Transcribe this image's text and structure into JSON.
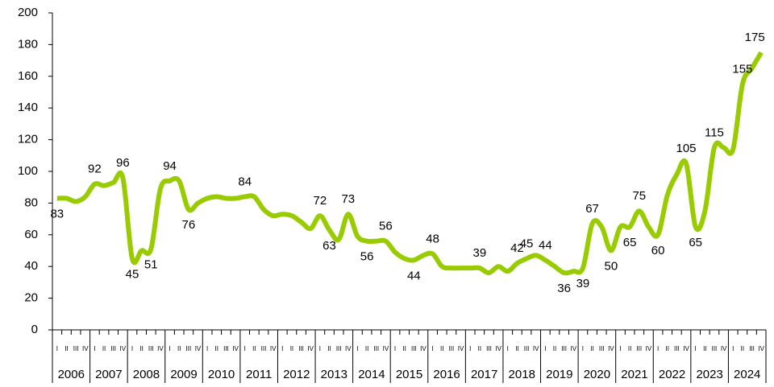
{
  "chart_data": {
    "type": "line",
    "years": [
      "2006",
      "2007",
      "2008",
      "2009",
      "2010",
      "2011",
      "2012",
      "2013",
      "2014",
      "2015",
      "2016",
      "2017",
      "2018",
      "2019",
      "2020",
      "2021",
      "2022",
      "2023",
      "2024"
    ],
    "categories": [
      "I",
      "II",
      "III",
      "IV",
      "I",
      "II",
      "III",
      "IV",
      "I",
      "II",
      "III",
      "IV",
      "I",
      "II",
      "III",
      "IV",
      "I",
      "II",
      "III",
      "IV",
      "I",
      "II",
      "III",
      "IV",
      "I",
      "II",
      "III",
      "IV",
      "I",
      "II",
      "III",
      "IV",
      "I",
      "II",
      "III",
      "IV",
      "I",
      "II",
      "III",
      "IV",
      "I",
      "II",
      "III",
      "IV",
      "I",
      "II",
      "III",
      "IV",
      "I",
      "II",
      "III",
      "IV",
      "I",
      "II",
      "III",
      "IV",
      "I",
      "II",
      "III",
      "IV",
      "I",
      "II",
      "III",
      "IV",
      "I",
      "II",
      "III",
      "IV",
      "I",
      "II",
      "III",
      "IV",
      "I",
      "II",
      "III",
      "IV"
    ],
    "series": [
      {
        "color": "#99cc00",
        "values": [
          83,
          83,
          81,
          84,
          92,
          91,
          93,
          96,
          45,
          50,
          51,
          89,
          94,
          94,
          76,
          80,
          83,
          84,
          83,
          83,
          84,
          84,
          76,
          72,
          73,
          72,
          68,
          64,
          72,
          63,
          57,
          73,
          59,
          56,
          56,
          56,
          49,
          45,
          44,
          47,
          48,
          40,
          39,
          39,
          39,
          39,
          36,
          40,
          37,
          42,
          45,
          47,
          44,
          40,
          36,
          37,
          39,
          67,
          65,
          50,
          65,
          65,
          75,
          65,
          60,
          85,
          98,
          105,
          65,
          75,
          115,
          115,
          114,
          155,
          165,
          175
        ],
        "value_labels": [
          "83",
          null,
          null,
          null,
          "92",
          null,
          null,
          "96",
          "45",
          null,
          "51",
          null,
          "94",
          null,
          "76",
          null,
          null,
          null,
          null,
          null,
          "84",
          null,
          null,
          null,
          null,
          null,
          null,
          null,
          "72",
          "63",
          null,
          "73",
          null,
          "56",
          null,
          "56",
          null,
          null,
          "44",
          null,
          "48",
          null,
          null,
          null,
          null,
          "39",
          null,
          null,
          null,
          "42",
          "45",
          null,
          "44",
          null,
          "36",
          null,
          "39",
          "67",
          null,
          "50",
          null,
          "65",
          "75",
          null,
          "60",
          null,
          null,
          "105",
          "65",
          null,
          "115",
          null,
          null,
          "155",
          null,
          "175"
        ]
      }
    ],
    "ylim": [
      0,
      200
    ],
    "yticks": [
      0,
      20,
      40,
      60,
      80,
      100,
      120,
      140,
      160,
      180,
      200
    ]
  }
}
